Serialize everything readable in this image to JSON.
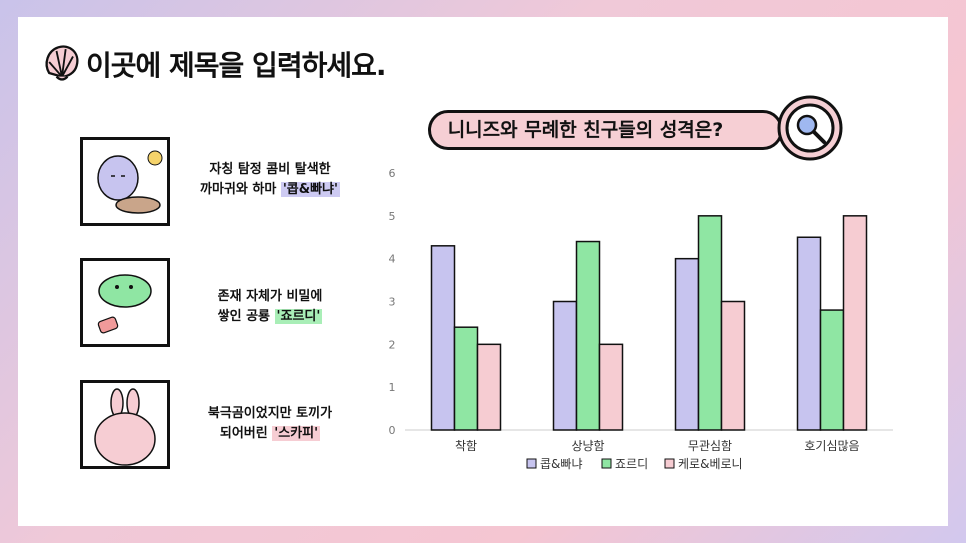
{
  "slide": {
    "title": "이곳에 제목을 입력하세요."
  },
  "characters": [
    {
      "text_line1": "자칭 탐정 콤비 탈색한",
      "text_line2_prefix": "까마귀와 하마 ",
      "highlight": "'콥&빠냐'",
      "highlight_color": "#cdcaf2"
    },
    {
      "text_line1": "존재 자체가 비밀에",
      "text_line2_prefix": "쌓인 공룡 ",
      "highlight": "'죠르디'",
      "highlight_color": "#a9eeb7"
    },
    {
      "text_line1": "북극곰이었지만 토끼가",
      "text_line2_prefix": "되어버린 ",
      "highlight": "'스카피'",
      "highlight_color": "#f6cdd3"
    }
  ],
  "chart_title": "니니즈와 무례한 친구들의 성격은?",
  "chart_data": {
    "type": "bar",
    "categories": [
      "착함",
      "상냥함",
      "무관심함",
      "호기심많음"
    ],
    "series": [
      {
        "name": "콥&빠냐",
        "values": [
          4.3,
          3.0,
          4.0,
          4.5
        ],
        "color": "#c7c4ef"
      },
      {
        "name": "죠르디",
        "values": [
          2.4,
          4.4,
          5.0,
          2.8
        ],
        "color": "#8fe6a3"
      },
      {
        "name": "케로&베로니",
        "values": [
          2.0,
          2.0,
          3.0,
          5.0
        ],
        "color": "#f6ccd2"
      }
    ],
    "yticks": [
      "0",
      "1",
      "2",
      "3",
      "4",
      "5",
      "6"
    ],
    "ylim": [
      0,
      6
    ],
    "legend_position": "bottom",
    "grid": false
  }
}
